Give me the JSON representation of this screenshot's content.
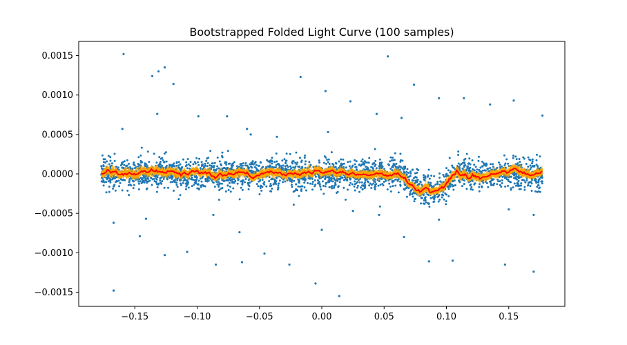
{
  "chart_data": {
    "type": "scatter",
    "title": "Bootstrapped Folded Light Curve (100 samples)",
    "xlabel": "",
    "ylabel": "",
    "xlim": [
      -0.195,
      0.195
    ],
    "ylim": [
      -0.00168,
      0.00168
    ],
    "xticks": [
      -0.15,
      -0.1,
      -0.05,
      0.0,
      0.05,
      0.1,
      0.15
    ],
    "xtick_labels": [
      "−0.15",
      "−0.10",
      "−0.05",
      "0.00",
      "0.05",
      "0.10",
      "0.15"
    ],
    "yticks": [
      0.0015,
      0.001,
      0.0005,
      0.0,
      -0.0005,
      -0.001,
      -0.0015
    ],
    "ytick_labels": [
      "0.0015",
      "0.0010",
      "0.0005",
      "0.0000",
      "−0.0005",
      "−0.0010",
      "−0.0015"
    ],
    "grid": false,
    "colors": {
      "points": "#1f77b4",
      "band": "#ffa500",
      "median": "#ff0000"
    },
    "data_x_range": [
      -0.177,
      0.177
    ],
    "noise_sigma": 0.0001,
    "transit": {
      "center": 0.088,
      "ingress_start": 0.065,
      "flat_start": 0.078,
      "flat_end": 0.096,
      "egress_end": 0.108,
      "depth": 0.0002
    },
    "outliers": [
      [
        -0.159,
        0.00152
      ],
      [
        -0.136,
        0.00124
      ],
      [
        -0.131,
        0.0013
      ],
      [
        -0.126,
        0.00135
      ],
      [
        -0.119,
        0.00114
      ],
      [
        -0.132,
        0.00076
      ],
      [
        -0.16,
        0.00057
      ],
      [
        -0.099,
        0.00073
      ],
      [
        -0.076,
        0.00073
      ],
      [
        -0.06,
        0.00057
      ],
      [
        -0.057,
        0.0005
      ],
      [
        -0.036,
        0.00047
      ],
      [
        -0.017,
        0.00123
      ],
      [
        0.003,
        0.00105
      ],
      [
        0.005,
        0.00053
      ],
      [
        0.023,
        0.00092
      ],
      [
        0.044,
        0.00076
      ],
      [
        0.053,
        0.00149
      ],
      [
        0.064,
        0.00071
      ],
      [
        0.074,
        0.00113
      ],
      [
        0.094,
        0.00096
      ],
      [
        0.114,
        0.00096
      ],
      [
        0.135,
        0.00088
      ],
      [
        0.154,
        0.00093
      ],
      [
        0.177,
        0.00074
      ],
      [
        -0.167,
        -0.00062
      ],
      [
        -0.146,
        -0.00079
      ],
      [
        -0.141,
        -0.00057
      ],
      [
        -0.126,
        -0.00103
      ],
      [
        -0.108,
        -0.00099
      ],
      [
        -0.087,
        -0.00052
      ],
      [
        -0.085,
        -0.00115
      ],
      [
        -0.066,
        -0.00074
      ],
      [
        -0.064,
        -0.00112
      ],
      [
        -0.046,
        -0.00101
      ],
      [
        -0.026,
        -0.00115
      ],
      [
        -0.005,
        -0.00139
      ],
      [
        0.0,
        -0.00071
      ],
      [
        0.014,
        -0.00155
      ],
      [
        0.025,
        -0.00047
      ],
      [
        0.046,
        -0.00052
      ],
      [
        0.066,
        -0.0008
      ],
      [
        0.086,
        -0.00111
      ],
      [
        0.105,
        -0.0011
      ],
      [
        0.147,
        -0.00115
      ],
      [
        0.15,
        -0.00045
      ],
      [
        0.17,
        -0.00124
      ],
      [
        0.17,
        -0.00052
      ],
      [
        -0.167,
        -0.00148
      ],
      [
        0.094,
        -0.00058
      ]
    ]
  }
}
